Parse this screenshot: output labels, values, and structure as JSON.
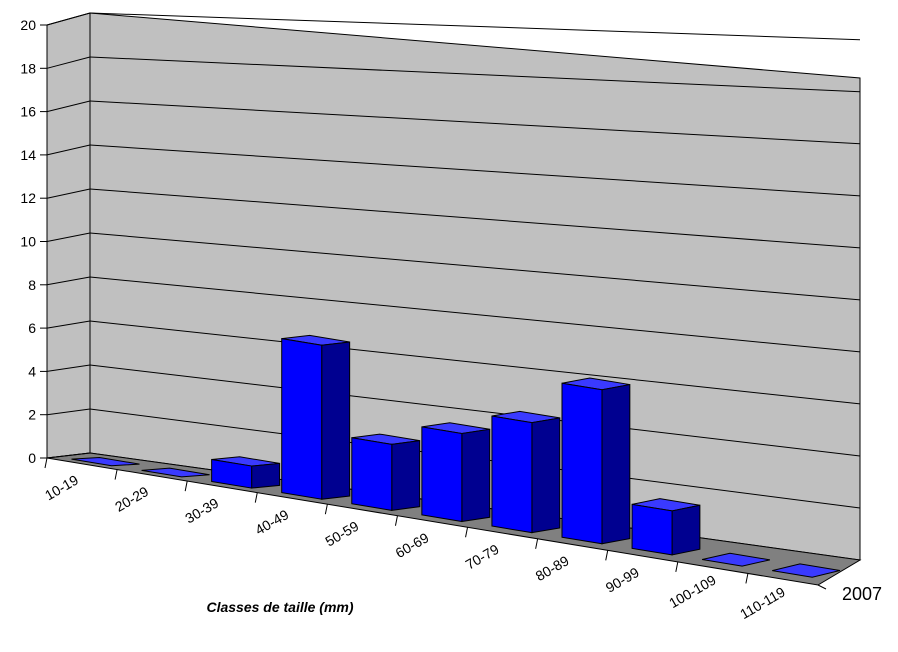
{
  "chart_data": {
    "type": "bar",
    "title": "",
    "xlabel": "Classes de taille (mm)",
    "ylabel": "",
    "categories": [
      "10-19",
      "20-29",
      "30-39",
      "40-49",
      "50-59",
      "60-69",
      "70-79",
      "80-89",
      "90-99",
      "100-109",
      "110-119"
    ],
    "series": [
      {
        "name": "2007",
        "values": [
          0,
          0,
          1,
          7,
          3,
          4,
          5,
          7,
          2,
          0,
          0
        ]
      }
    ],
    "yticks": [
      "0",
      "2",
      "4",
      "6",
      "8",
      "10",
      "12",
      "14",
      "16",
      "18",
      "20"
    ],
    "ylim": [
      0,
      20
    ],
    "grid": true,
    "colors": {
      "bar_front": "#0000ff",
      "bar_side": "#000090",
      "bar_top": "#3a3aff",
      "wall": "#c0c0c0",
      "floor": "#808080"
    }
  }
}
